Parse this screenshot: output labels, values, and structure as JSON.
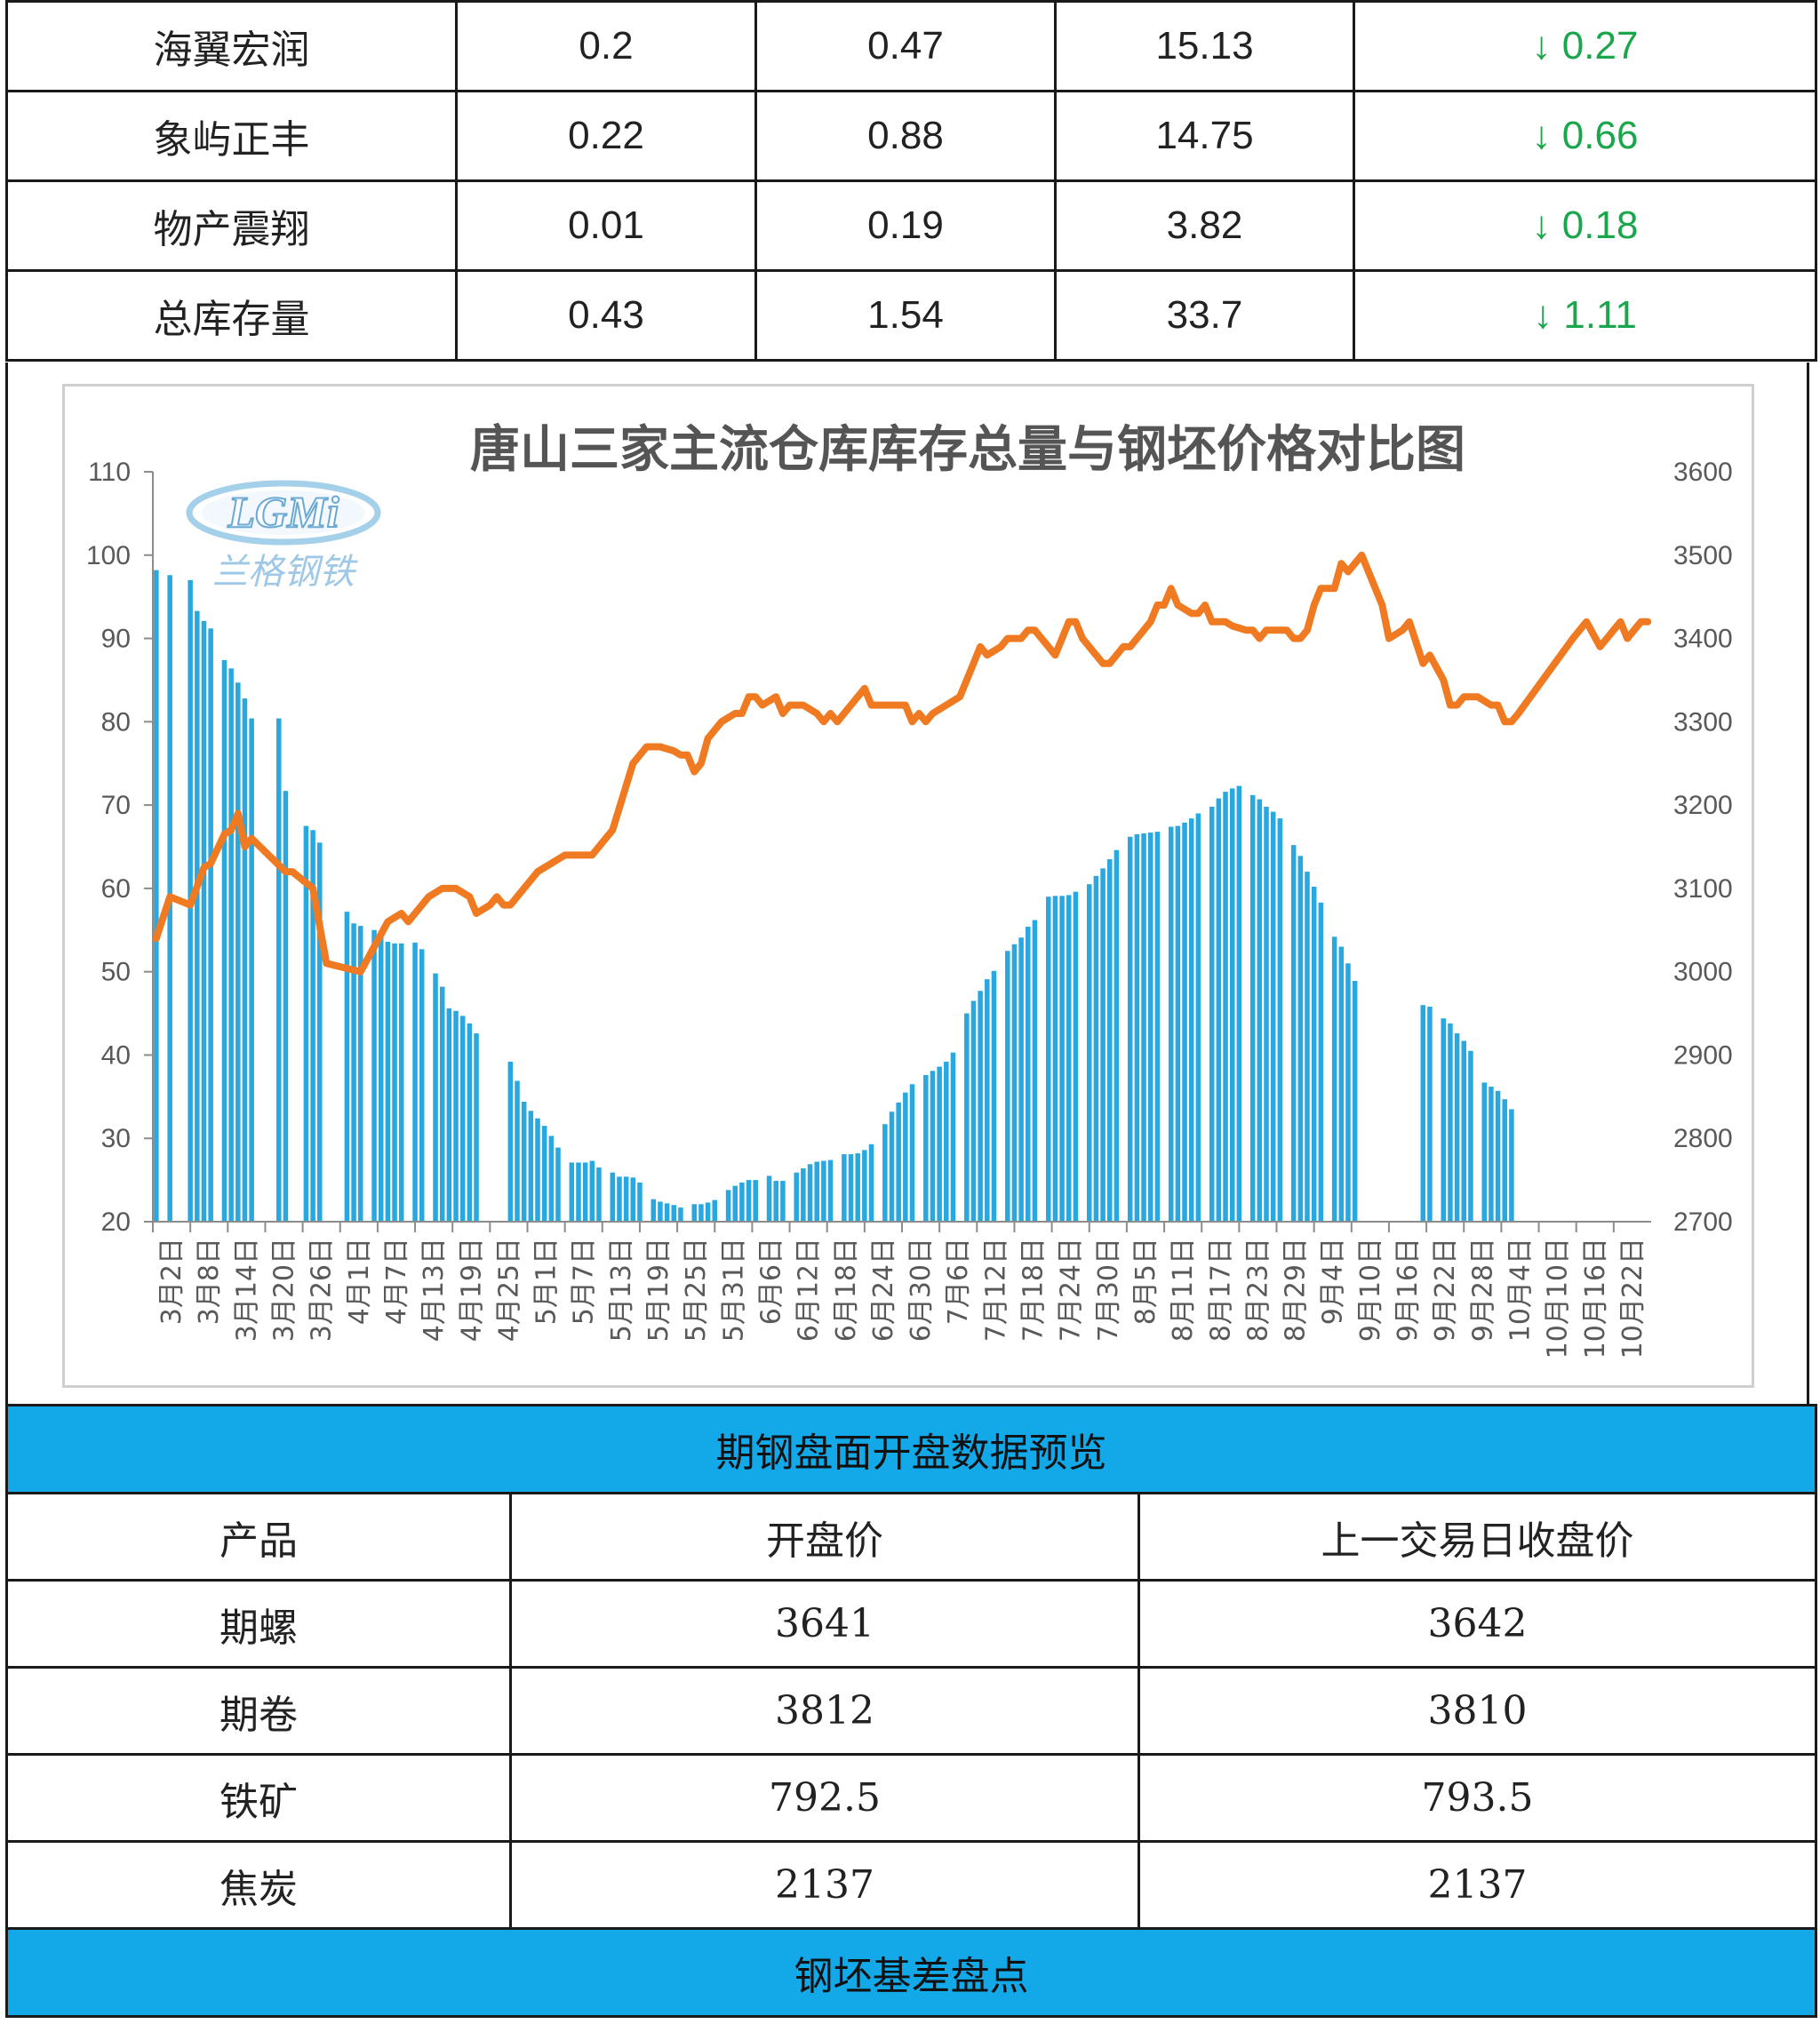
{
  "inventory_table": {
    "rows": [
      {
        "name": "海翼宏润",
        "v1": "0.2",
        "v2": "0.47",
        "v3": "15.13",
        "change": "↓ 0.27"
      },
      {
        "name": "象屿正丰",
        "v1": "0.22",
        "v2": "0.88",
        "v3": "14.75",
        "change": "↓ 0.66"
      },
      {
        "name": "物产震翔",
        "v1": "0.01",
        "v2": "0.19",
        "v3": "3.82",
        "change": "↓ 0.18"
      },
      {
        "name": "总库存量",
        "v1": "0.43",
        "v2": "1.54",
        "v3": "33.7",
        "change": "↓ 1.11"
      }
    ]
  },
  "logo": {
    "text": "LGMi",
    "subtitle": "兰格钢铁"
  },
  "chart_data": {
    "type": "bar+line",
    "title": "唐山三家主流仓库库存总量与钢坯价格对比图",
    "left_axis": {
      "ylim": [
        20,
        110
      ],
      "ticks": [
        "110",
        "100",
        "90",
        "80",
        "70",
        "60",
        "50",
        "40",
        "30",
        "20"
      ]
    },
    "right_axis": {
      "ylim": [
        2700,
        3600
      ],
      "ticks": [
        "3600",
        "3500",
        "3400",
        "3300",
        "3200",
        "3100",
        "3000",
        "2900",
        "2800",
        "2700"
      ]
    },
    "x_tick_labels": [
      "3月2日",
      "3月8日",
      "3月14日",
      "3月20日",
      "3月26日",
      "4月1日",
      "4月7日",
      "4月13日",
      "4月19日",
      "4月25日",
      "5月1日",
      "5月7日",
      "5月13日",
      "5月19日",
      "5月25日",
      "5月31日",
      "6月6日",
      "6月12日",
      "6月18日",
      "6月24日",
      "6月30日",
      "7月6日",
      "7月12日",
      "7月18日",
      "7月24日",
      "7月30日",
      "8月5日",
      "8月11日",
      "8月17日",
      "8月23日",
      "8月29日",
      "9月4日",
      "9月10日",
      "9月16日",
      "9月22日",
      "9月28日",
      "10月4日",
      "10月10日",
      "10月16日",
      "10月22日"
    ],
    "bar_color": "#29a8e0",
    "line_color": "#f07a22",
    "bars": [
      [
        0,
        98.2
      ],
      [
        2,
        97.6
      ],
      [
        5,
        97
      ],
      [
        6,
        93.3
      ],
      [
        7,
        92.1
      ],
      [
        8,
        91.2
      ],
      [
        10,
        87.4
      ],
      [
        11,
        86.4
      ],
      [
        12,
        84.7
      ],
      [
        13,
        82.8
      ],
      [
        14,
        80.4
      ],
      [
        18,
        80.4
      ],
      [
        19,
        71.7
      ],
      [
        22,
        67.5
      ],
      [
        23,
        67
      ],
      [
        24,
        65.5
      ],
      [
        28,
        57.2
      ],
      [
        29,
        55.8
      ],
      [
        30,
        55.5
      ],
      [
        32,
        55
      ],
      [
        33,
        54.6
      ],
      [
        34,
        53.6
      ],
      [
        35,
        53.4
      ],
      [
        36,
        53.4
      ],
      [
        38,
        53.5
      ],
      [
        39,
        52.7
      ],
      [
        41,
        49.8
      ],
      [
        42,
        48.2
      ],
      [
        43,
        45.6
      ],
      [
        44,
        45.3
      ],
      [
        45,
        44.7
      ],
      [
        46,
        43.8
      ],
      [
        47,
        42.6
      ],
      [
        52,
        39.2
      ],
      [
        53,
        36.9
      ],
      [
        54,
        34.4
      ],
      [
        55,
        33.3
      ],
      [
        56,
        32.4
      ],
      [
        57,
        31.5
      ],
      [
        58,
        30.3
      ],
      [
        59,
        28.9
      ],
      [
        61,
        27.1
      ],
      [
        62,
        27.1
      ],
      [
        63,
        27.1
      ],
      [
        64,
        27.3
      ],
      [
        65,
        26.5
      ],
      [
        67,
        25.9
      ],
      [
        68,
        25.4
      ],
      [
        69,
        25.4
      ],
      [
        70,
        25.3
      ],
      [
        71,
        24.7
      ],
      [
        73,
        22.7
      ],
      [
        74,
        22.4
      ],
      [
        75,
        22.2
      ],
      [
        76,
        22
      ],
      [
        77,
        21.7
      ],
      [
        79,
        22.1
      ],
      [
        80,
        22.1
      ],
      [
        81,
        22.3
      ],
      [
        82,
        22.6
      ],
      [
        84,
        23.8
      ],
      [
        85,
        24.3
      ],
      [
        86,
        24.7
      ],
      [
        87,
        25
      ],
      [
        88,
        25
      ],
      [
        90,
        25.5
      ],
      [
        91,
        24.9
      ],
      [
        92,
        24.9
      ],
      [
        94,
        25.9
      ],
      [
        95,
        26.4
      ],
      [
        96,
        26.9
      ],
      [
        97,
        27.2
      ],
      [
        98,
        27.3
      ],
      [
        99,
        27.4
      ],
      [
        101,
        28.1
      ],
      [
        102,
        28.1
      ],
      [
        103,
        28.2
      ],
      [
        104,
        28.6
      ],
      [
        105,
        29.3
      ],
      [
        107,
        31.7
      ],
      [
        108,
        33.2
      ],
      [
        109,
        34.3
      ],
      [
        110,
        35.5
      ],
      [
        111,
        36.5
      ],
      [
        113,
        37.6
      ],
      [
        114,
        38.1
      ],
      [
        115,
        38.6
      ],
      [
        116,
        39.2
      ],
      [
        117,
        40.3
      ],
      [
        119,
        45
      ],
      [
        120,
        46.5
      ],
      [
        121,
        47.7
      ],
      [
        122,
        49.1
      ],
      [
        123,
        50.1
      ],
      [
        125,
        52.5
      ],
      [
        126,
        53.3
      ],
      [
        127,
        54.1
      ],
      [
        128,
        55.4
      ],
      [
        129,
        56.2
      ],
      [
        131,
        59
      ],
      [
        132,
        59.1
      ],
      [
        133,
        59.1
      ],
      [
        134,
        59.2
      ],
      [
        135,
        59.6
      ],
      [
        137,
        60.5
      ],
      [
        138,
        61.5
      ],
      [
        139,
        62.4
      ],
      [
        140,
        63.5
      ],
      [
        141,
        64.6
      ],
      [
        143,
        66.2
      ],
      [
        144,
        66.5
      ],
      [
        145,
        66.6
      ],
      [
        146,
        66.7
      ],
      [
        147,
        66.8
      ],
      [
        149,
        67.4
      ],
      [
        150,
        67.5
      ],
      [
        151,
        67.9
      ],
      [
        152,
        68.4
      ],
      [
        153,
        69
      ],
      [
        155,
        69.8
      ],
      [
        156,
        70.8
      ],
      [
        157,
        71.6
      ],
      [
        158,
        72
      ],
      [
        159,
        72.3
      ],
      [
        161,
        71.2
      ],
      [
        162,
        70.7
      ],
      [
        163,
        69.8
      ],
      [
        164,
        69.2
      ],
      [
        165,
        68.4
      ],
      [
        167,
        65.2
      ],
      [
        168,
        63.9
      ],
      [
        169,
        62
      ],
      [
        170,
        60.2
      ],
      [
        171,
        58.3
      ],
      [
        173,
        54.2
      ],
      [
        174,
        53
      ],
      [
        175,
        51
      ],
      [
        176,
        48.9
      ],
      [
        186,
        46
      ],
      [
        187,
        45.8
      ],
      [
        189,
        44.4
      ],
      [
        190,
        43.8
      ],
      [
        191,
        42.6
      ],
      [
        192,
        41.7
      ],
      [
        193,
        40.5
      ],
      [
        195,
        36.7
      ],
      [
        196,
        36.2
      ],
      [
        197,
        35.7
      ],
      [
        198,
        34.7
      ],
      [
        199,
        33.5
      ]
    ],
    "line": [
      [
        0,
        3040
      ],
      [
        2,
        3090
      ],
      [
        5,
        3080
      ],
      [
        7,
        3125
      ],
      [
        8,
        3130
      ],
      [
        10,
        3165
      ],
      [
        11,
        3170
      ],
      [
        12,
        3190
      ],
      [
        13,
        3150
      ],
      [
        14,
        3160
      ],
      [
        19,
        3120
      ],
      [
        20,
        3120
      ],
      [
        23,
        3100
      ],
      [
        25,
        3010
      ],
      [
        30,
        3000
      ],
      [
        34,
        3060
      ],
      [
        36,
        3070
      ],
      [
        37,
        3060
      ],
      [
        40,
        3090
      ],
      [
        42,
        3100
      ],
      [
        44,
        3100
      ],
      [
        46,
        3090
      ],
      [
        47,
        3070
      ],
      [
        49,
        3080
      ],
      [
        50,
        3090
      ],
      [
        51,
        3080
      ],
      [
        52,
        3080
      ],
      [
        56,
        3120
      ],
      [
        58,
        3130
      ],
      [
        60,
        3140
      ],
      [
        64,
        3140
      ],
      [
        67,
        3170
      ],
      [
        70,
        3250
      ],
      [
        72,
        3270
      ],
      [
        74,
        3270
      ],
      [
        76,
        3265
      ],
      [
        77,
        3260
      ],
      [
        78,
        3260
      ],
      [
        79,
        3240
      ],
      [
        80,
        3250
      ],
      [
        81,
        3280
      ],
      [
        83,
        3300
      ],
      [
        85,
        3310
      ],
      [
        86,
        3310
      ],
      [
        87,
        3330
      ],
      [
        88,
        3330
      ],
      [
        89,
        3320
      ],
      [
        91,
        3330
      ],
      [
        92,
        3310
      ],
      [
        93,
        3320
      ],
      [
        95,
        3320
      ],
      [
        97,
        3310
      ],
      [
        98,
        3300
      ],
      [
        99,
        3310
      ],
      [
        100,
        3300
      ],
      [
        102,
        3320
      ],
      [
        104,
        3340
      ],
      [
        105,
        3320
      ],
      [
        106,
        3320
      ],
      [
        108,
        3320
      ],
      [
        110,
        3320
      ],
      [
        111,
        3300
      ],
      [
        112,
        3310
      ],
      [
        113,
        3300
      ],
      [
        114,
        3310
      ],
      [
        116,
        3320
      ],
      [
        118,
        3330
      ],
      [
        120,
        3370
      ],
      [
        121,
        3390
      ],
      [
        122,
        3380
      ],
      [
        124,
        3390
      ],
      [
        125,
        3400
      ],
      [
        127,
        3400
      ],
      [
        128,
        3410
      ],
      [
        129,
        3410
      ],
      [
        130,
        3400
      ],
      [
        131,
        3390
      ],
      [
        132,
        3380
      ],
      [
        134,
        3420
      ],
      [
        135,
        3420
      ],
      [
        136,
        3400
      ],
      [
        139,
        3370
      ],
      [
        140,
        3370
      ],
      [
        141,
        3380
      ],
      [
        142,
        3390
      ],
      [
        143,
        3390
      ],
      [
        144,
        3400
      ],
      [
        145,
        3410
      ],
      [
        146,
        3420
      ],
      [
        147,
        3440
      ],
      [
        148,
        3440
      ],
      [
        149,
        3460
      ],
      [
        150,
        3440
      ],
      [
        152,
        3430
      ],
      [
        153,
        3430
      ],
      [
        154,
        3440
      ],
      [
        155,
        3420
      ],
      [
        157,
        3420
      ],
      [
        158,
        3415
      ],
      [
        160,
        3410
      ],
      [
        161,
        3410
      ],
      [
        162,
        3400
      ],
      [
        163,
        3410
      ],
      [
        165,
        3410
      ],
      [
        166,
        3410
      ],
      [
        167,
        3400
      ],
      [
        168,
        3400
      ],
      [
        169,
        3410
      ],
      [
        170,
        3440
      ],
      [
        171,
        3460
      ],
      [
        173,
        3460
      ],
      [
        174,
        3490
      ],
      [
        175,
        3480
      ],
      [
        176,
        3490
      ],
      [
        177,
        3500
      ],
      [
        180,
        3440
      ],
      [
        181,
        3400
      ],
      [
        183,
        3410
      ],
      [
        184,
        3420
      ],
      [
        186,
        3370
      ],
      [
        187,
        3380
      ],
      [
        189,
        3350
      ],
      [
        190,
        3320
      ],
      [
        191,
        3320
      ],
      [
        192,
        3330
      ],
      [
        194,
        3330
      ],
      [
        196,
        3320
      ],
      [
        197,
        3320
      ],
      [
        198,
        3300
      ],
      [
        199,
        3300
      ],
      [
        200,
        3310
      ],
      [
        208,
        3400
      ],
      [
        210,
        3420
      ],
      [
        212,
        3390
      ],
      [
        214,
        3410
      ],
      [
        215,
        3420
      ],
      [
        216,
        3400
      ],
      [
        217,
        3410
      ],
      [
        218,
        3420
      ],
      [
        219,
        3420
      ]
    ]
  },
  "futures_section": {
    "title": "期钢盘面开盘数据预览",
    "headers": [
      "产品",
      "开盘价",
      "上一交易日收盘价"
    ],
    "rows": [
      {
        "product": "期螺",
        "open": "3641",
        "prev_close": "3642"
      },
      {
        "product": "期卷",
        "open": "3812",
        "prev_close": "3810"
      },
      {
        "product": "铁矿",
        "open": "792.5",
        "prev_close": "793.5"
      },
      {
        "product": "焦炭",
        "open": "2137",
        "prev_close": "2137"
      }
    ]
  },
  "basis_section": {
    "title": "钢坯基差盘点"
  }
}
